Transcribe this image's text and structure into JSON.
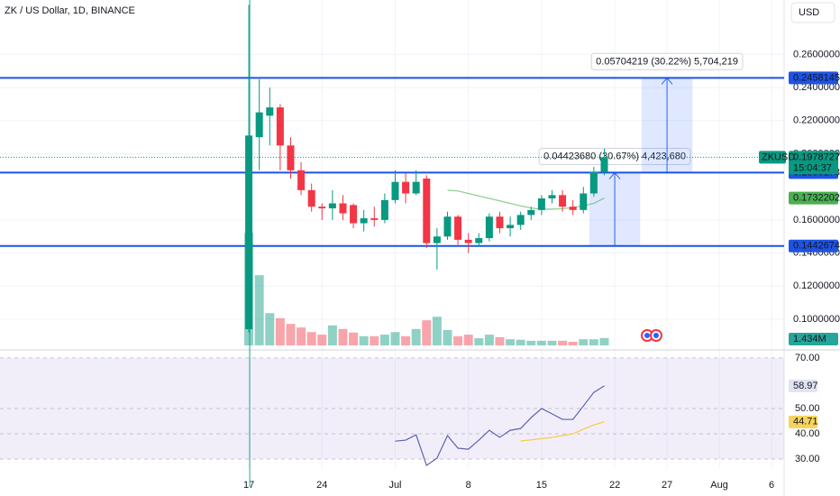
{
  "chart_data": {
    "type": "candlestick",
    "title": "ZK / US Dollar, 1D, BINANCE",
    "currency_button": "USD",
    "symbol_label": "ZKUSD",
    "countdown": "15:04:37",
    "up_color": "#089981",
    "down_color": "#f23645",
    "xlim": [
      -23.8,
      51.2
    ],
    "xticks": [
      {
        "value": 0,
        "label": "17"
      },
      {
        "value": 7,
        "label": "24"
      },
      {
        "value": 14,
        "label": "Jul"
      },
      {
        "value": 21,
        "label": "8"
      },
      {
        "value": 28,
        "label": "15"
      },
      {
        "value": 35,
        "label": "22"
      },
      {
        "value": 40,
        "label": "27"
      },
      {
        "value": 45,
        "label": "Aug"
      },
      {
        "value": 50,
        "label": "6"
      }
    ],
    "ylim": [
      0.0831,
      0.2929
    ],
    "yticks": [
      {
        "value": 0.26,
        "label": "0.26000000"
      },
      {
        "value": 0.24,
        "label": "0.24000000"
      },
      {
        "value": 0.22,
        "label": "0.22000000"
      },
      {
        "value": 0.2,
        "label": "0.20000000"
      },
      {
        "value": 0.16,
        "label": "0.16000000"
      },
      {
        "value": 0.14,
        "label": "0.14000000"
      },
      {
        "value": 0.12,
        "label": "0.12000000"
      },
      {
        "value": 0.1,
        "label": "0.10000000"
      }
    ],
    "grid": true,
    "open": [
      0.094,
      0.21,
      0.223,
      0.228,
      0.205,
      0.19,
      0.178,
      0.168,
      0.167,
      0.17,
      0.169,
      0.158,
      0.161,
      0.16,
      0.172,
      0.183,
      0.176,
      0.185,
      0.146,
      0.15,
      0.162,
      0.148,
      0.146,
      0.149,
      0.162,
      0.155,
      0.157,
      0.163,
      0.166,
      0.173,
      0.175,
      0.168,
      0.166,
      0.176,
      0.189
    ],
    "high": [
      0.29,
      0.245,
      0.24,
      0.23,
      0.21,
      0.195,
      0.182,
      0.17,
      0.178,
      0.175,
      0.17,
      0.166,
      0.168,
      0.176,
      0.19,
      0.188,
      0.19,
      0.187,
      0.155,
      0.165,
      0.163,
      0.152,
      0.152,
      0.164,
      0.165,
      0.162,
      0.165,
      0.168,
      0.175,
      0.178,
      0.178,
      0.172,
      0.18,
      0.192,
      0.203
    ],
    "low": [
      0.092,
      0.19,
      0.205,
      0.19,
      0.185,
      0.175,
      0.165,
      0.16,
      0.16,
      0.16,
      0.155,
      0.153,
      0.156,
      0.158,
      0.17,
      0.17,
      0.175,
      0.143,
      0.13,
      0.148,
      0.145,
      0.14,
      0.144,
      0.147,
      0.152,
      0.15,
      0.154,
      0.16,
      0.163,
      0.17,
      0.165,
      0.163,
      0.164,
      0.174,
      0.187
    ],
    "close": [
      0.211,
      0.225,
      0.228,
      0.205,
      0.19,
      0.178,
      0.168,
      0.167,
      0.17,
      0.164,
      0.158,
      0.161,
      0.16,
      0.172,
      0.183,
      0.176,
      0.183,
      0.146,
      0.15,
      0.162,
      0.148,
      0.146,
      0.149,
      0.162,
      0.155,
      0.157,
      0.163,
      0.166,
      0.173,
      0.175,
      0.168,
      0.166,
      0.176,
      0.189,
      0.19787271
    ],
    "ma": {
      "color": "#4caf50",
      "values": [
        null,
        null,
        null,
        null,
        null,
        null,
        null,
        null,
        null,
        null,
        null,
        null,
        null,
        null,
        null,
        null,
        null,
        null,
        null,
        0.178,
        0.1775,
        0.176,
        0.1745,
        0.173,
        0.1715,
        0.17,
        0.1685,
        0.1672,
        0.1665,
        0.1665,
        0.1668,
        0.1675,
        0.1685,
        0.17,
        0.17322029
      ]
    },
    "levels": [
      {
        "value": 0.24581454,
        "color": "#1e53e5"
      },
      {
        "value": 0.18861789,
        "color": "#1e53e5"
      },
      {
        "value": 0.14426743,
        "color": "#1e53e5"
      }
    ],
    "measurements": [
      {
        "low": 0.14426743,
        "high": 0.1885042,
        "start": 33,
        "end": 37,
        "label": "0.04423680 (30.67%) 4,423,680"
      },
      {
        "low": 0.18877235,
        "high": 0.24581454,
        "start": 38,
        "end": 42,
        "label": "0.05704219 (30.22%) 5,704,219"
      }
    ],
    "volume": {
      "values": [
        22,
        13.7,
        6.3,
        5.3,
        4.2,
        3.5,
        2.6,
        2.1,
        3.9,
        3.2,
        2.5,
        1.8,
        1.8,
        2.1,
        2.6,
        1.8,
        3.2,
        4.9,
        5.6,
        3.0,
        1.8,
        2.1,
        1.4,
        2.1,
        1.6,
        1.2,
        1.1,
        0.9,
        0.9,
        0.9,
        0.9,
        0.7,
        1.2,
        1.2,
        1.434
      ],
      "last_label": "1.434M"
    },
    "rsi": {
      "color": "#5b62b5",
      "ma_color": "#f7c948",
      "ylim": [
        26.1,
        71.4
      ],
      "yticks": [
        {
          "value": 70,
          "label": "70.00"
        },
        {
          "value": 50,
          "label": "50.00"
        },
        {
          "value": 40,
          "label": "40.00"
        },
        {
          "value": 30,
          "label": "30.00"
        }
      ],
      "values": [
        null,
        null,
        null,
        null,
        null,
        null,
        null,
        null,
        null,
        null,
        null,
        null,
        null,
        null,
        37.1,
        37.5,
        39.6,
        27.5,
        30.4,
        39.3,
        34.3,
        33.9,
        37.5,
        41.4,
        38.6,
        41.4,
        42.1,
        46.4,
        50,
        47.9,
        45.7,
        45.7,
        51,
        56.4,
        58.97
      ],
      "ma": [
        null,
        null,
        null,
        null,
        null,
        null,
        null,
        null,
        null,
        null,
        null,
        null,
        null,
        null,
        null,
        null,
        null,
        null,
        null,
        null,
        null,
        null,
        null,
        null,
        null,
        null,
        37.2,
        37.6,
        38.1,
        38.6,
        39.3,
        40,
        41.8,
        43.5,
        44.71
      ]
    }
  }
}
